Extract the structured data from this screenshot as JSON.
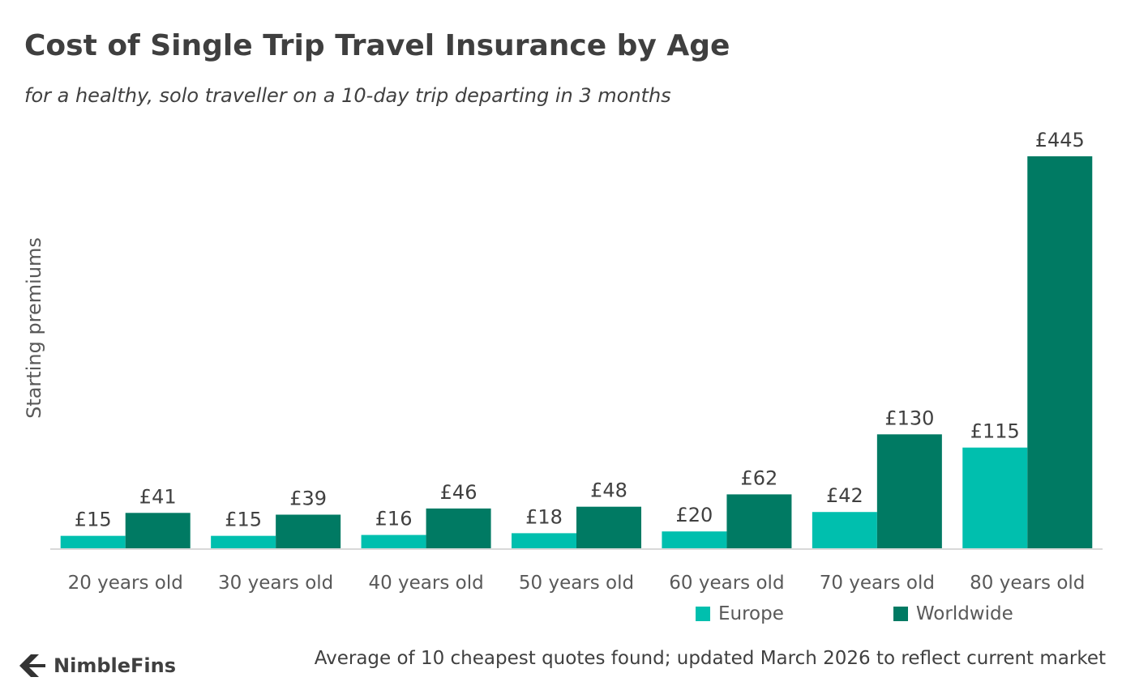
{
  "chart_data": {
    "type": "bar",
    "title": "Cost of Single Trip Travel Insurance by Age",
    "subtitle": "for a healthy, solo traveller on a 10-day trip departing in 3 months",
    "xlabel": "",
    "ylabel": "Starting premiums",
    "categories": [
      "20 years old",
      "30 years old",
      "40 years old",
      "50 years old",
      "60 years old",
      "70 years old",
      "80 years old"
    ],
    "series": [
      {
        "name": "Europe",
        "color": "#00BFAE",
        "values": [
          15,
          15,
          16,
          18,
          20,
          42,
          115
        ],
        "labels": [
          "£15",
          "£15",
          "£16",
          "£18",
          "£20",
          "£42",
          "£115"
        ]
      },
      {
        "name": "Worldwide",
        "color": "#007A63",
        "values": [
          41,
          39,
          46,
          48,
          62,
          130,
          445
        ],
        "labels": [
          "£41",
          "£39",
          "£46",
          "£48",
          "£62",
          "£130",
          "£445"
        ]
      }
    ],
    "ylim": [
      0,
      445
    ],
    "grid": false,
    "legend_position": "bottom-right"
  },
  "footer": {
    "brand": "NimbleFins",
    "note": "Average of 10 cheapest quotes found; updated March 2026 to reflect current market"
  }
}
